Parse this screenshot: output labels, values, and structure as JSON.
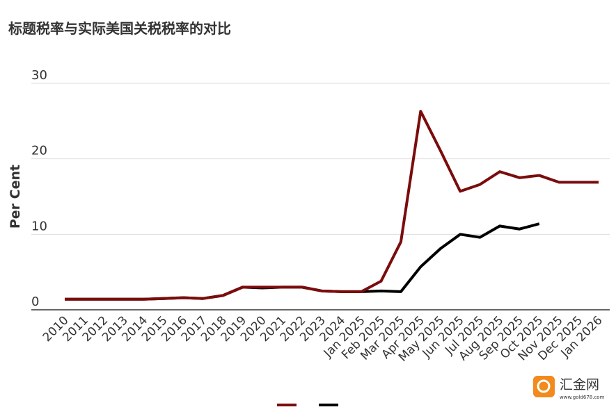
{
  "chart_data": {
    "type": "line",
    "title": "标题税率与实际美国关税税率的对比",
    "y_label": "Per Cent",
    "categories": [
      "2010",
      "2011",
      "2012",
      "2013",
      "2014",
      "2015",
      "2016",
      "2017",
      "2018",
      "2019",
      "2020",
      "2021",
      "2022",
      "2023",
      "2024",
      "Jan 2025",
      "Feb 2025",
      "Mar 2025",
      "Apr 2025",
      "May 2025",
      "Jun 2025",
      "Jul 2025",
      "Aug 2025",
      "Sep 2025",
      "Oct 2025",
      "Nov 2025",
      "Dec 2025",
      "Jan 2026"
    ],
    "series": [
      {
        "color": "#7b0c0c",
        "values": [
          1.4,
          1.4,
          1.4,
          1.4,
          1.4,
          1.5,
          1.6,
          1.5,
          1.9,
          3.0,
          3.0,
          3.0,
          3.0,
          2.5,
          2.4,
          2.4,
          3.8,
          9.0,
          26.3,
          21.1,
          15.7,
          16.6,
          18.3,
          17.5,
          17.8,
          16.9,
          16.9,
          16.9
        ]
      },
      {
        "color": "#000000",
        "values": [
          1.4,
          1.4,
          1.4,
          1.4,
          1.4,
          1.5,
          1.6,
          1.5,
          1.9,
          3.0,
          2.9,
          3.0,
          3.0,
          2.5,
          2.4,
          2.4,
          2.5,
          2.4,
          5.7,
          8.1,
          10.0,
          9.6,
          11.1,
          10.7,
          11.4,
          null,
          null,
          null
        ]
      }
    ],
    "ylim": [
      0,
      30
    ],
    "yticks": [
      0,
      10,
      20,
      30
    ],
    "grid": true
  },
  "watermark": {
    "name": "汇金网",
    "url": "www.gold678.com"
  }
}
